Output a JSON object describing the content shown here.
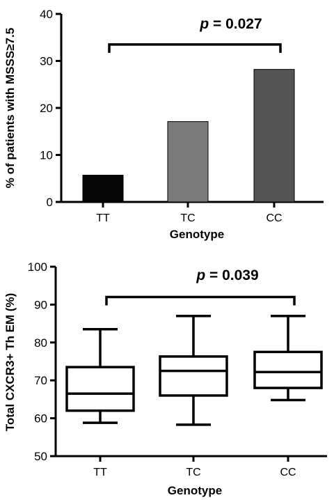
{
  "chart_data": [
    {
      "type": "bar",
      "categories": [
        "TT",
        "TC",
        "CC"
      ],
      "values": [
        5.7,
        17.1,
        28.2
      ],
      "bar_colors": [
        "#050505",
        "#7a7a7a",
        "#555555"
      ],
      "xlabel": "Genotype",
      "ylabel": "% of patients with MSSS≥7.5",
      "ylim": [
        0,
        40
      ],
      "yticks": [
        0,
        10,
        20,
        30,
        40
      ],
      "grid": false,
      "annotation": {
        "prefix": "p",
        "text": " = 0.027",
        "from_category": "TT",
        "to_category": "CC",
        "bracket_y": 33.5
      }
    },
    {
      "type": "box",
      "categories": [
        "TT",
        "TC",
        "CC"
      ],
      "boxes": [
        {
          "category": "TT",
          "min": 58.8,
          "q1": 62.0,
          "median": 66.5,
          "q3": 73.5,
          "max": 83.5
        },
        {
          "category": "TC",
          "min": 58.3,
          "q1": 66.0,
          "median": 72.5,
          "q3": 76.3,
          "max": 87.0
        },
        {
          "category": "CC",
          "min": 64.8,
          "q1": 68.0,
          "median": 72.2,
          "q3": 77.5,
          "max": 87.0
        }
      ],
      "xlabel": "Genotype",
      "ylabel": "Total CXCR3+ Th EM (%)",
      "ylim": [
        50,
        100
      ],
      "yticks": [
        50,
        60,
        70,
        80,
        90,
        100
      ],
      "grid": false,
      "annotation": {
        "prefix": "p",
        "text": " = 0.039",
        "from_category": "TT",
        "to_category": "CC",
        "bracket_y": 92
      }
    }
  ]
}
